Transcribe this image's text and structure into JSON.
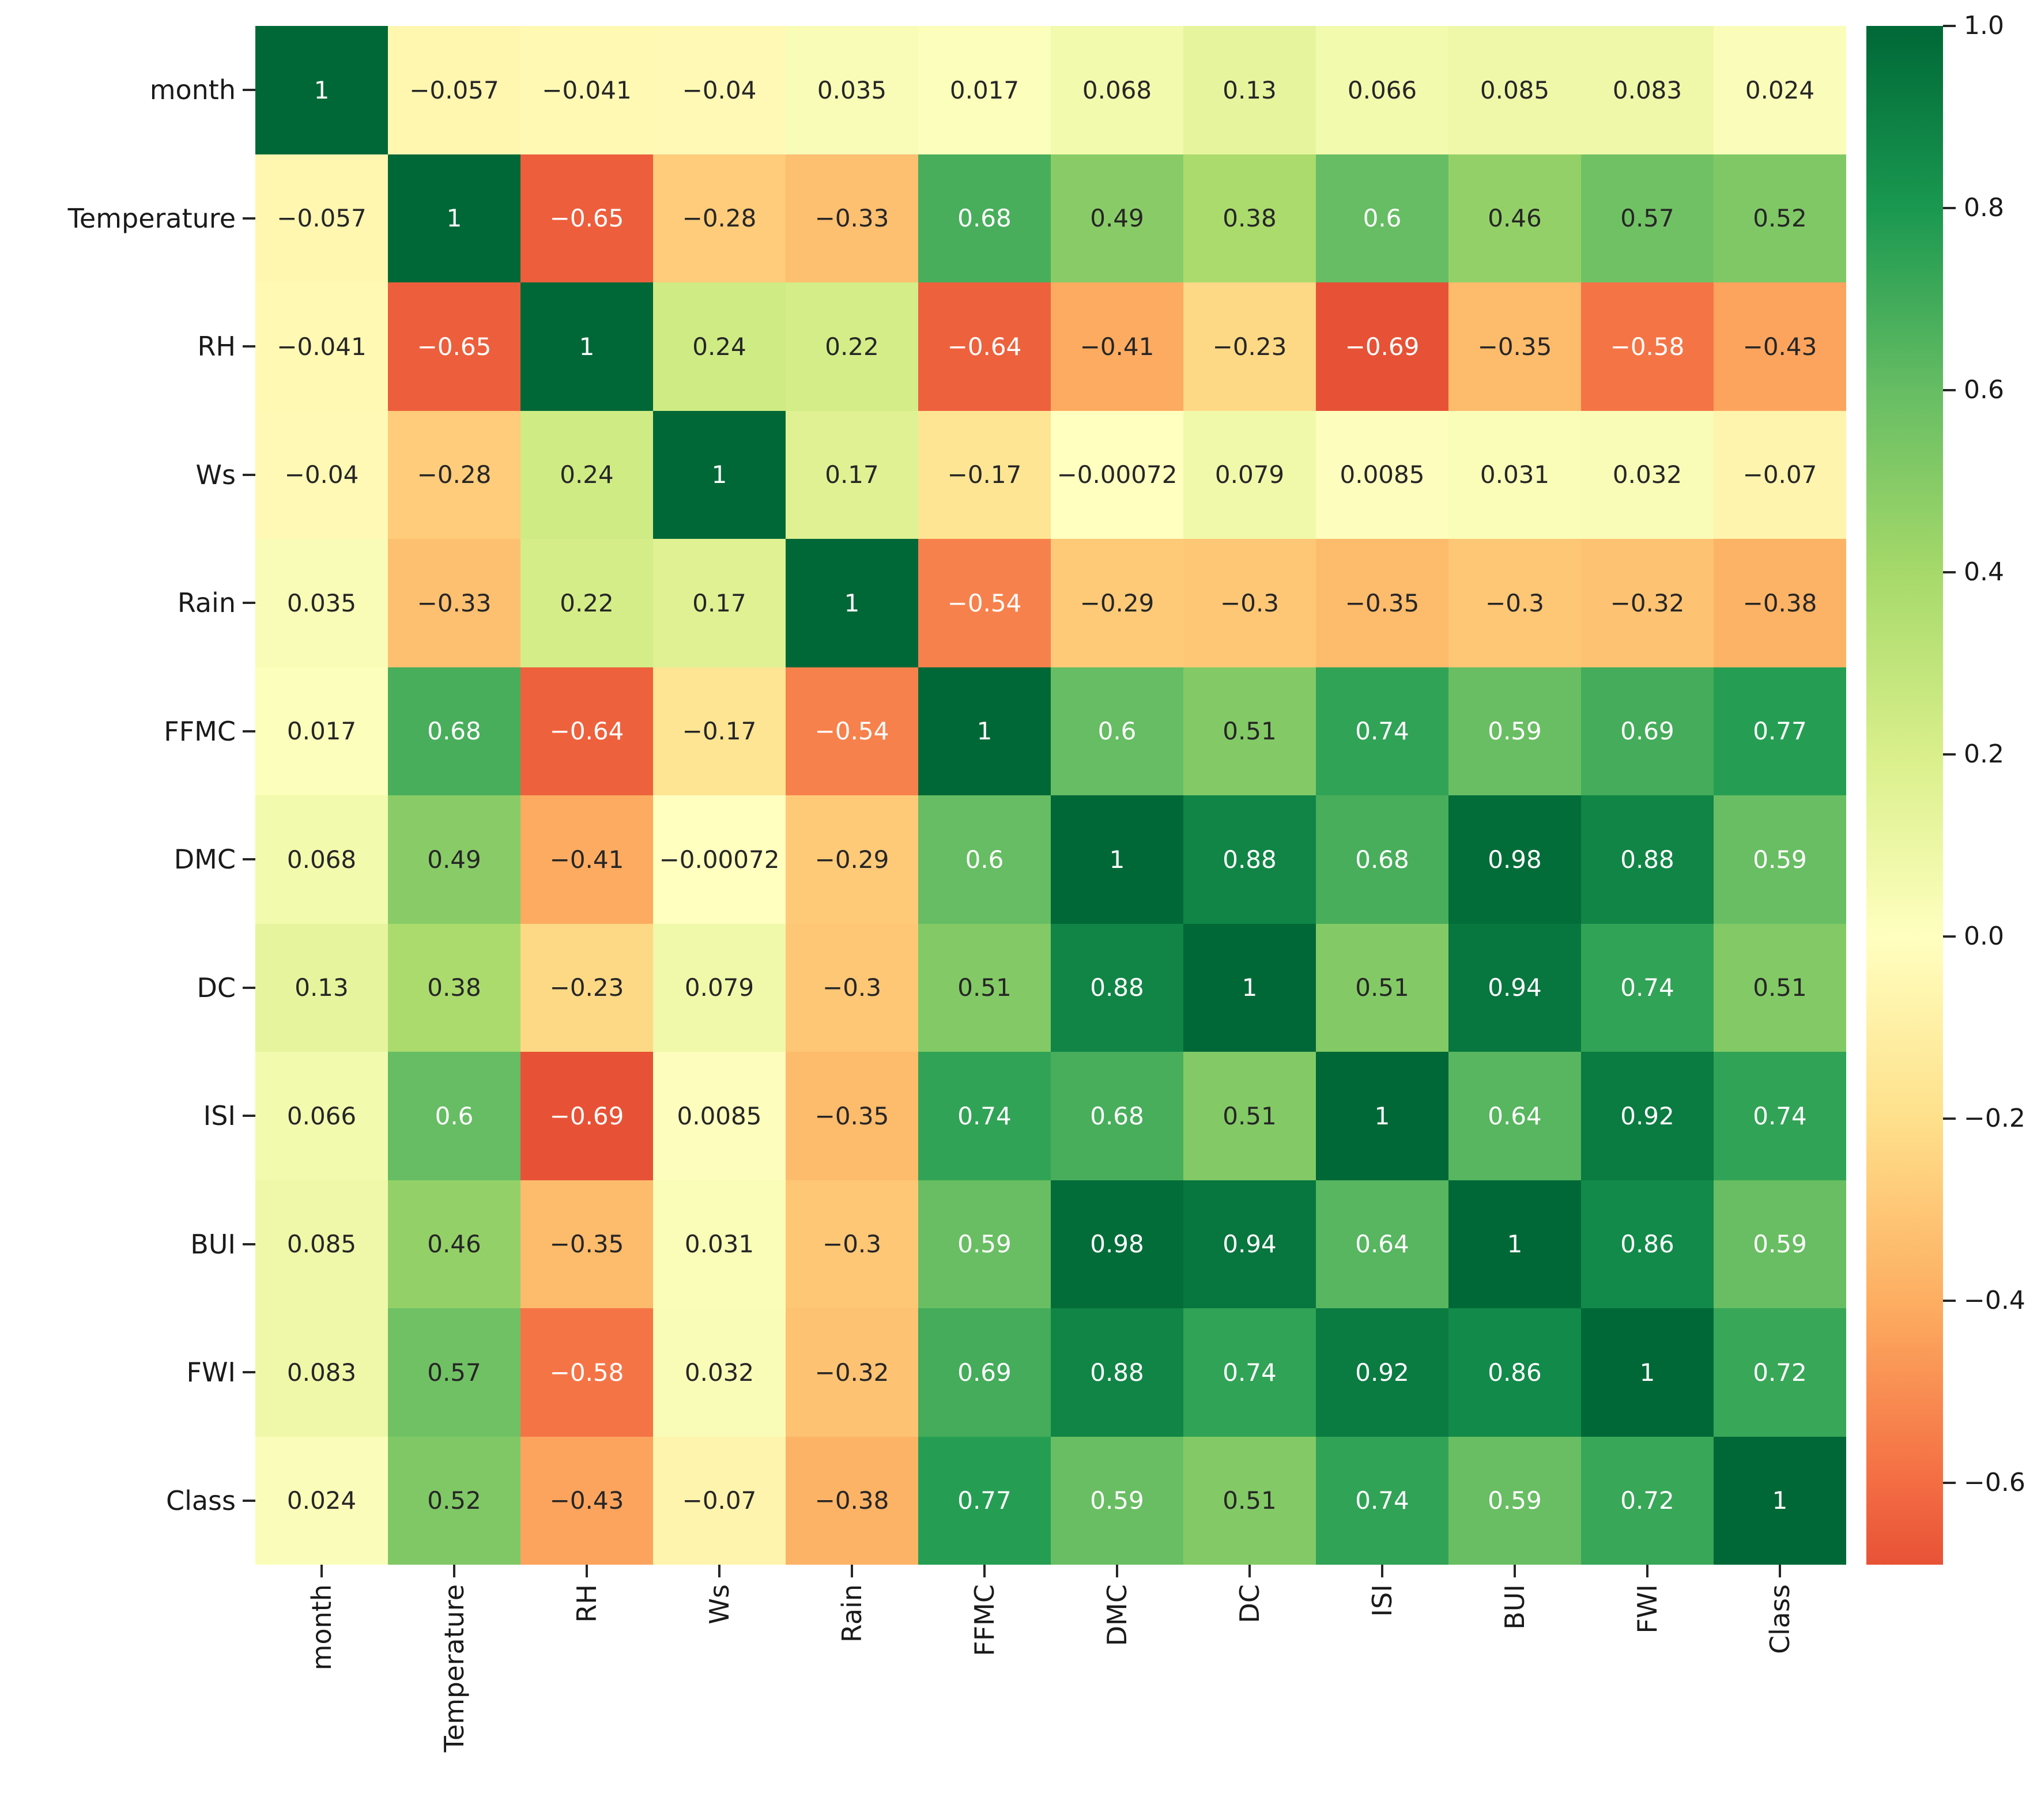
{
  "chart_data": {
    "type": "heatmap",
    "title": "",
    "xlabel": "",
    "ylabel": "",
    "colormap": "RdYlGn",
    "annotated": true,
    "grid": false,
    "legend_position": "colorbar-right",
    "categories": [
      "month",
      "Temperature",
      "RH",
      "Ws",
      "Rain",
      "FFMC",
      "DMC",
      "DC",
      "ISI",
      "BUI",
      "FWI",
      "Class"
    ],
    "matrix_display": [
      [
        "1",
        "-0.057",
        "-0.041",
        "-0.04",
        "0.035",
        "0.017",
        "0.068",
        "0.13",
        "0.066",
        "0.085",
        "0.083",
        "0.024"
      ],
      [
        "-0.057",
        "1",
        "-0.65",
        "-0.28",
        "-0.33",
        "0.68",
        "0.49",
        "0.38",
        "0.6",
        "0.46",
        "0.57",
        "0.52"
      ],
      [
        "-0.041",
        "-0.65",
        "1",
        "0.24",
        "0.22",
        "-0.64",
        "-0.41",
        "-0.23",
        "-0.69",
        "-0.35",
        "-0.58",
        "-0.43"
      ],
      [
        "-0.04",
        "-0.28",
        "0.24",
        "1",
        "0.17",
        "-0.17",
        "-0.00072",
        "0.079",
        "0.0085",
        "0.031",
        "0.032",
        "-0.07"
      ],
      [
        "0.035",
        "-0.33",
        "0.22",
        "0.17",
        "1",
        "-0.54",
        "-0.29",
        "-0.3",
        "-0.35",
        "-0.3",
        "-0.32",
        "-0.38"
      ],
      [
        "0.017",
        "0.68",
        "-0.64",
        "-0.17",
        "-0.54",
        "1",
        "0.6",
        "0.51",
        "0.74",
        "0.59",
        "0.69",
        "0.77"
      ],
      [
        "0.068",
        "0.49",
        "-0.41",
        "-0.00072",
        "-0.29",
        "0.6",
        "1",
        "0.88",
        "0.68",
        "0.98",
        "0.88",
        "0.59"
      ],
      [
        "0.13",
        "0.38",
        "-0.23",
        "0.079",
        "-0.3",
        "0.51",
        "0.88",
        "1",
        "0.51",
        "0.94",
        "0.74",
        "0.51"
      ],
      [
        "0.066",
        "0.6",
        "-0.69",
        "0.0085",
        "-0.35",
        "0.74",
        "0.68",
        "0.51",
        "1",
        "0.64",
        "0.92",
        "0.74"
      ],
      [
        "0.085",
        "0.46",
        "-0.35",
        "0.031",
        "-0.3",
        "0.59",
        "0.98",
        "0.94",
        "0.64",
        "1",
        "0.86",
        "0.59"
      ],
      [
        "0.083",
        "0.57",
        "-0.58",
        "0.032",
        "-0.32",
        "0.69",
        "0.88",
        "0.74",
        "0.92",
        "0.86",
        "1",
        "0.72"
      ],
      [
        "0.024",
        "0.52",
        "-0.43",
        "-0.07",
        "-0.38",
        "0.77",
        "0.59",
        "0.51",
        "0.74",
        "0.59",
        "0.72",
        "1"
      ]
    ],
    "color_scale": {
      "vmin": -1.0,
      "vmax": 1.0
    },
    "colorbar": {
      "axis_max": 1.0,
      "axis_min": -0.69,
      "tick_labels": [
        "1.0",
        "0.8",
        "0.6",
        "0.4",
        "0.2",
        "0.0",
        "-0.2",
        "-0.4",
        "-0.6"
      ],
      "tick_values": [
        1.0,
        0.8,
        0.6,
        0.4,
        0.2,
        0.0,
        -0.2,
        -0.4,
        -0.6
      ]
    }
  }
}
